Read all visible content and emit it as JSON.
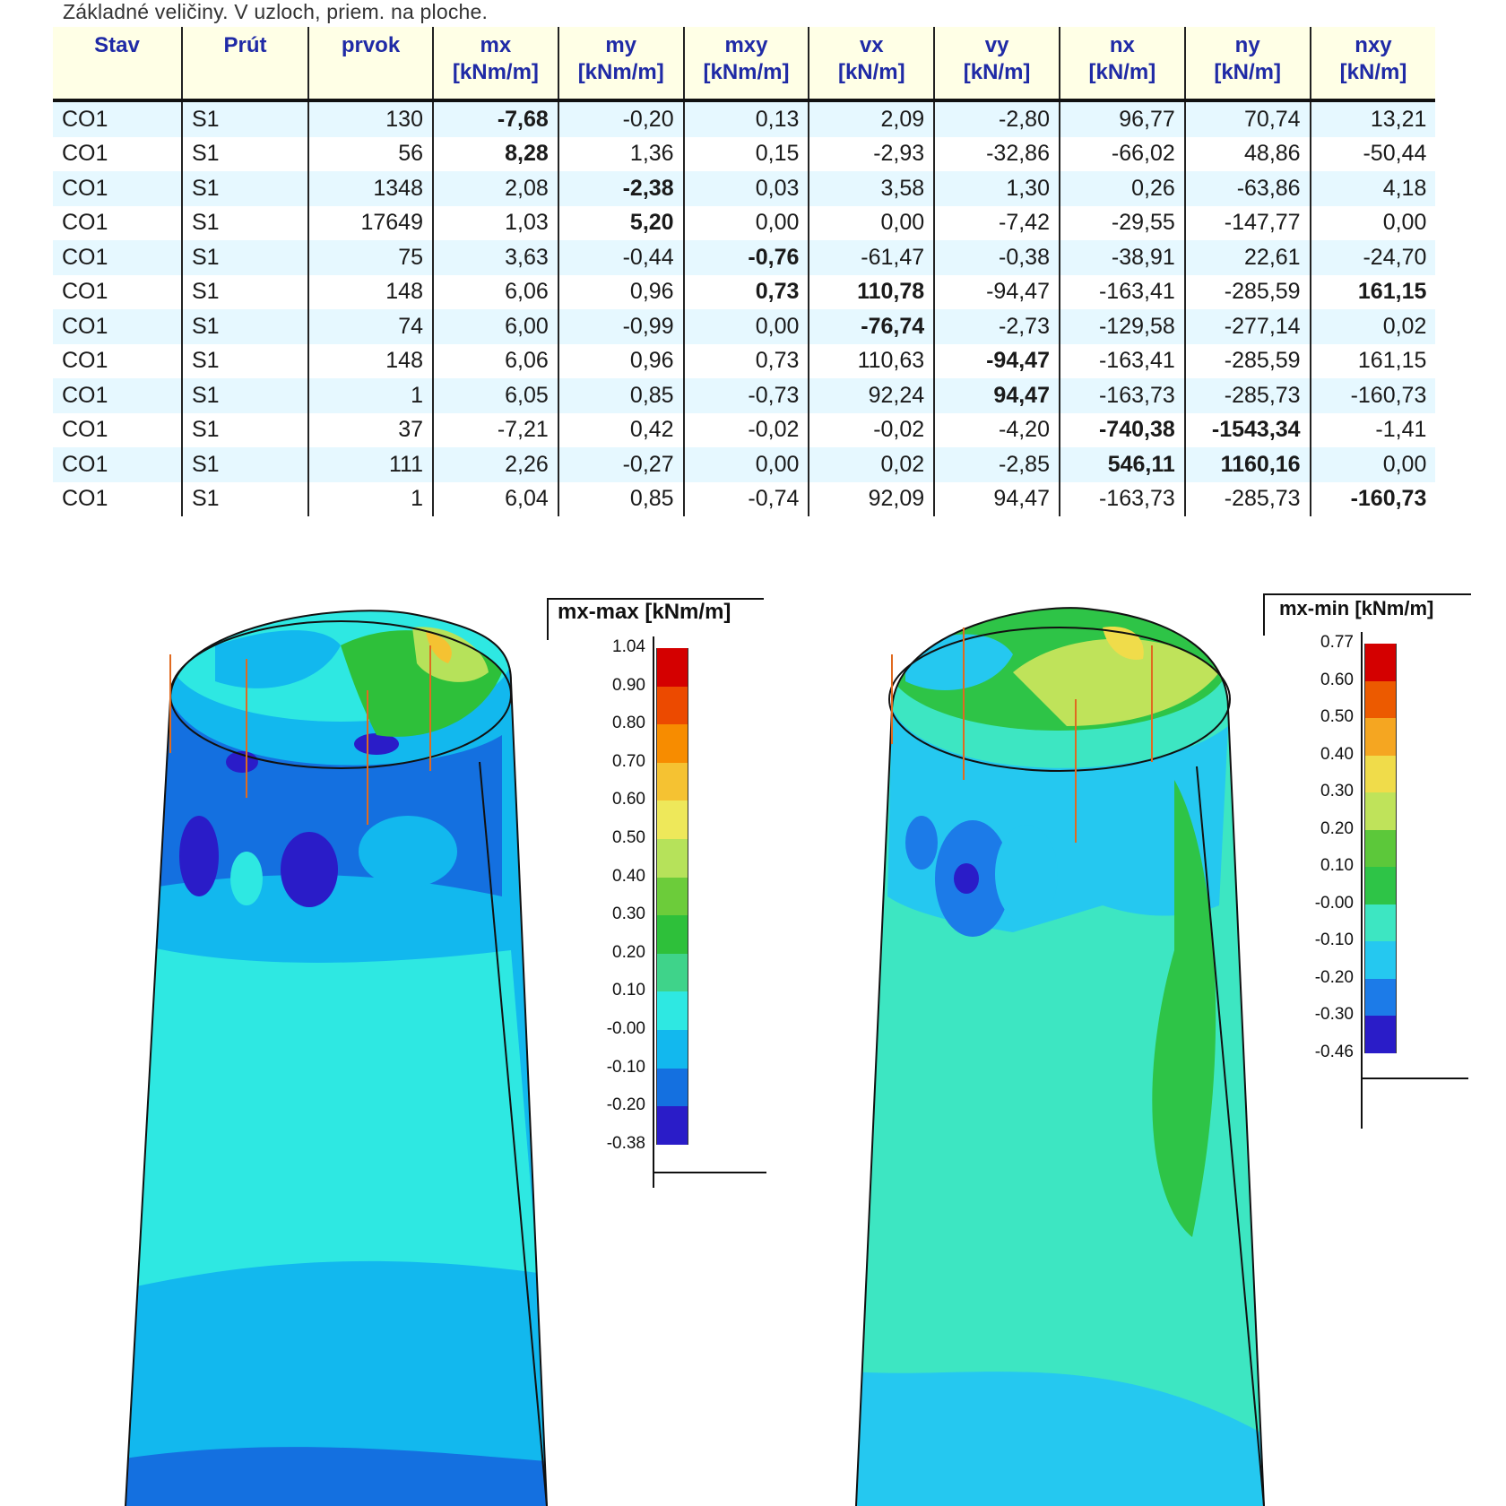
{
  "caption": "Základné veličiny. V uzloch, priem. na ploche.",
  "table": {
    "headers": [
      {
        "name": "Stav",
        "unit": ""
      },
      {
        "name": "Prút",
        "unit": ""
      },
      {
        "name": "prvok",
        "unit": ""
      },
      {
        "name": "mx",
        "unit": "[kNm/m]"
      },
      {
        "name": "my",
        "unit": "[kNm/m]"
      },
      {
        "name": "mxy",
        "unit": "[kNm/m]"
      },
      {
        "name": "vx",
        "unit": "[kN/m]"
      },
      {
        "name": "vy",
        "unit": "[kN/m]"
      },
      {
        "name": "nx",
        "unit": "[kN/m]"
      },
      {
        "name": "ny",
        "unit": "[kN/m]"
      },
      {
        "name": "nxy",
        "unit": "[kN/m]"
      }
    ],
    "rows": [
      {
        "cells": [
          "CO1",
          "S1",
          "130",
          "-7,68",
          "-0,20",
          "0,13",
          "2,09",
          "-2,80",
          "96,77",
          "70,74",
          "13,21"
        ],
        "bold": [
          3
        ]
      },
      {
        "cells": [
          "CO1",
          "S1",
          "56",
          "8,28",
          "1,36",
          "0,15",
          "-2,93",
          "-32,86",
          "-66,02",
          "48,86",
          "-50,44"
        ],
        "bold": [
          3
        ]
      },
      {
        "cells": [
          "CO1",
          "S1",
          "1348",
          "2,08",
          "-2,38",
          "0,03",
          "3,58",
          "1,30",
          "0,26",
          "-63,86",
          "4,18"
        ],
        "bold": [
          4
        ]
      },
      {
        "cells": [
          "CO1",
          "S1",
          "17649",
          "1,03",
          "5,20",
          "0,00",
          "0,00",
          "-7,42",
          "-29,55",
          "-147,77",
          "0,00"
        ],
        "bold": [
          4
        ]
      },
      {
        "cells": [
          "CO1",
          "S1",
          "75",
          "3,63",
          "-0,44",
          "-0,76",
          "-61,47",
          "-0,38",
          "-38,91",
          "22,61",
          "-24,70"
        ],
        "bold": [
          5
        ]
      },
      {
        "cells": [
          "CO1",
          "S1",
          "148",
          "6,06",
          "0,96",
          "0,73",
          "110,78",
          "-94,47",
          "-163,41",
          "-285,59",
          "161,15"
        ],
        "bold": [
          5,
          6,
          10
        ]
      },
      {
        "cells": [
          "CO1",
          "S1",
          "74",
          "6,00",
          "-0,99",
          "0,00",
          "-76,74",
          "-2,73",
          "-129,58",
          "-277,14",
          "0,02"
        ],
        "bold": [
          6
        ]
      },
      {
        "cells": [
          "CO1",
          "S1",
          "148",
          "6,06",
          "0,96",
          "0,73",
          "110,63",
          "-94,47",
          "-163,41",
          "-285,59",
          "161,15"
        ],
        "bold": [
          7
        ]
      },
      {
        "cells": [
          "CO1",
          "S1",
          "1",
          "6,05",
          "0,85",
          "-0,73",
          "92,24",
          "94,47",
          "-163,73",
          "-285,73",
          "-160,73"
        ],
        "bold": [
          7
        ]
      },
      {
        "cells": [
          "CO1",
          "S1",
          "37",
          "-7,21",
          "0,42",
          "-0,02",
          "-0,02",
          "-4,20",
          "-740,38",
          "-1543,34",
          "-1,41"
        ],
        "bold": [
          8,
          9
        ]
      },
      {
        "cells": [
          "CO1",
          "S1",
          "111",
          "2,26",
          "-0,27",
          "0,00",
          "0,02",
          "-2,85",
          "546,11",
          "1160,16",
          "0,00"
        ],
        "bold": [
          8,
          9
        ]
      },
      {
        "cells": [
          "CO1",
          "S1",
          "1",
          "6,04",
          "0,85",
          "-0,74",
          "92,09",
          "94,47",
          "-163,73",
          "-285,73",
          "-160,73"
        ],
        "bold": [
          10
        ]
      }
    ]
  },
  "plots": {
    "left": {
      "title": "mx-max [kNm/m]",
      "ticks": [
        "1.04",
        "0.90",
        "0.80",
        "0.70",
        "0.60",
        "0.50",
        "0.40",
        "0.30",
        "0.20",
        "0.10",
        "-0.00",
        "-0.10",
        "-0.20",
        "-0.38"
      ],
      "colors": [
        "#d40000",
        "#ec4a00",
        "#f78c00",
        "#f5c232",
        "#eee85a",
        "#b6e25a",
        "#6ccc3a",
        "#2ec03a",
        "#3fd38a",
        "#2ee8e2",
        "#12b8ee",
        "#1470e0",
        "#2a1cc8"
      ]
    },
    "right": {
      "title": "mx-min [kNm/m]",
      "ticks": [
        "0.77",
        "0.60",
        "0.50",
        "0.40",
        "0.30",
        "0.20",
        "0.10",
        "-0.00",
        "-0.10",
        "-0.20",
        "-0.30",
        "-0.46"
      ],
      "colors": [
        "#d40000",
        "#ec5a00",
        "#f5a621",
        "#f0dc4a",
        "#bfe35a",
        "#5cc83a",
        "#2ec447",
        "#3de6c2",
        "#25c8f0",
        "#1c7be8",
        "#2a1cc8"
      ]
    }
  }
}
